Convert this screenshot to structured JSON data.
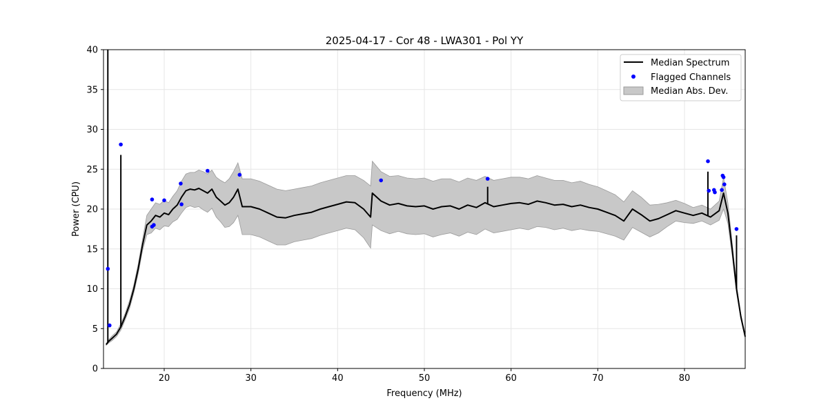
{
  "chart_data": {
    "type": "line",
    "title": "2025-04-17 - Cor 48 - LWA301 - Pol YY",
    "xlabel": "Frequency (MHz)",
    "ylabel": "Power (CPU)",
    "xlim": [
      13,
      87
    ],
    "ylim": [
      0,
      40
    ],
    "xticks": [
      20,
      30,
      40,
      50,
      60,
      70,
      80
    ],
    "yticks": [
      0,
      5,
      10,
      15,
      20,
      25,
      30,
      35,
      40
    ],
    "grid": true,
    "legend_position": "top-right",
    "legend": [
      "Median Spectrum",
      "Flagged Channels",
      "Median Abs. Dev."
    ],
    "colors": {
      "median": "#000000",
      "flagged": "#0000ff",
      "mad_fill": "#c8c8c8",
      "mad_edge": "#9a9a9a"
    },
    "series": [
      {
        "name": "Median Spectrum",
        "x": [
          13.3,
          13.6,
          14.0,
          14.5,
          15.0,
          15.5,
          16.0,
          16.5,
          17.0,
          17.5,
          18.0,
          18.5,
          19.0,
          19.5,
          20.0,
          20.5,
          21.0,
          21.5,
          22.0,
          22.5,
          23.0,
          23.5,
          24.0,
          24.5,
          25.0,
          25.5,
          26.0,
          26.5,
          27.0,
          27.5,
          28.0,
          28.5,
          29.0,
          30.0,
          31.0,
          32.0,
          33.0,
          34.0,
          35.0,
          36.0,
          37.0,
          38.0,
          39.0,
          40.0,
          41.0,
          42.0,
          43.0,
          43.8,
          44.0,
          45.0,
          46.0,
          47.0,
          48.0,
          49.0,
          50.0,
          51.0,
          52.0,
          53.0,
          54.0,
          55.0,
          56.0,
          57.0,
          58.0,
          59.0,
          60.0,
          61.0,
          62.0,
          63.0,
          64.0,
          65.0,
          66.0,
          67.0,
          68.0,
          69.0,
          70.0,
          71.0,
          72.0,
          73.0,
          74.0,
          75.0,
          76.0,
          77.0,
          78.0,
          79.0,
          80.0,
          81.0,
          82.0,
          83.0,
          84.0,
          84.5,
          85.0,
          85.5,
          86.0,
          86.5,
          87.0
        ],
        "values": [
          3.0,
          3.4,
          3.8,
          4.3,
          5.2,
          6.5,
          8.0,
          10.0,
          12.5,
          15.5,
          18.0,
          18.5,
          19.2,
          19.0,
          19.5,
          19.3,
          20.0,
          20.5,
          21.5,
          22.3,
          22.5,
          22.4,
          22.6,
          22.3,
          22.0,
          22.5,
          21.5,
          21.0,
          20.5,
          20.8,
          21.5,
          22.5,
          20.3,
          20.3,
          20.0,
          19.5,
          19.0,
          18.9,
          19.2,
          19.4,
          19.6,
          20.0,
          20.3,
          20.6,
          20.9,
          20.8,
          20.0,
          19.0,
          22.0,
          21.0,
          20.5,
          20.7,
          20.4,
          20.3,
          20.4,
          20.0,
          20.3,
          20.4,
          20.0,
          20.5,
          20.2,
          20.8,
          20.3,
          20.5,
          20.7,
          20.8,
          20.6,
          21.0,
          20.8,
          20.5,
          20.6,
          20.3,
          20.5,
          20.2,
          20.0,
          19.6,
          19.2,
          18.5,
          20.0,
          19.3,
          18.5,
          18.8,
          19.3,
          19.8,
          19.5,
          19.2,
          19.5,
          19.0,
          19.8,
          22.0,
          19.5,
          15.0,
          10.0,
          6.5,
          4.0
        ],
        "mad": [
          0.1,
          0.2,
          0.3,
          0.3,
          0.4,
          0.4,
          0.5,
          0.5,
          0.6,
          0.7,
          1.2,
          1.5,
          1.6,
          1.6,
          1.6,
          1.5,
          1.6,
          1.8,
          2.0,
          2.1,
          2.1,
          2.2,
          2.3,
          2.4,
          2.4,
          2.4,
          2.5,
          2.6,
          2.8,
          3.0,
          3.2,
          3.3,
          3.5,
          3.5,
          3.5,
          3.5,
          3.5,
          3.4,
          3.3,
          3.3,
          3.3,
          3.3,
          3.3,
          3.3,
          3.3,
          3.4,
          3.6,
          3.9,
          4.0,
          3.7,
          3.6,
          3.5,
          3.5,
          3.5,
          3.5,
          3.5,
          3.5,
          3.4,
          3.4,
          3.4,
          3.4,
          3.3,
          3.3,
          3.3,
          3.3,
          3.2,
          3.2,
          3.2,
          3.1,
          3.1,
          3.0,
          3.0,
          3.0,
          2.9,
          2.8,
          2.7,
          2.6,
          2.4,
          2.3,
          2.2,
          2.0,
          1.8,
          1.5,
          1.3,
          1.2,
          1.0,
          1.0,
          1.0,
          1.2,
          2.0,
          1.3,
          0.8,
          0.5,
          0.3,
          0.2
        ]
      },
      {
        "name": "Flagged Channels",
        "x": [
          13.5,
          13.7,
          15.0,
          18.6,
          18.6,
          18.8,
          20.0,
          21.9,
          22.0,
          25.0,
          28.7,
          45.0,
          57.3,
          82.7,
          82.8,
          83.4,
          83.5,
          84.3,
          84.4,
          84.5,
          84.6,
          86.0
        ],
        "values": [
          12.5,
          5.4,
          28.1,
          21.2,
          17.8,
          18.0,
          21.1,
          23.2,
          20.6,
          24.8,
          24.3,
          23.6,
          23.8,
          26.0,
          22.3,
          22.4,
          22.1,
          22.4,
          24.2,
          24.0,
          23.1,
          17.5
        ]
      }
    ],
    "spikes": {
      "x": [
        13.5,
        15.0,
        57.3,
        82.7,
        86.0
      ],
      "values": [
        40.0,
        26.8,
        22.8,
        24.7,
        16.7
      ]
    }
  }
}
